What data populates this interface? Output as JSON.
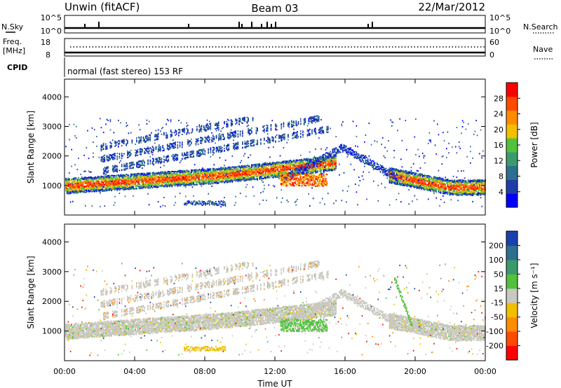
{
  "header": {
    "station": "Unwin (fitACF)",
    "beam": "Beam 03",
    "date": "22/Mar/2012"
  },
  "noise_panel": {
    "left_label": "N.Sky",
    "left_ticks": [
      "10^5",
      "10^0"
    ],
    "right_label": "N.Search",
    "right_ticks": [
      "10^5",
      "10^0"
    ]
  },
  "freq_panel": {
    "left_label_1": "Freq.",
    "left_label_2": "[MHz]",
    "left_ticks": [
      "18",
      "8"
    ],
    "right_label": "Nave",
    "right_ticks": [
      "60",
      "0"
    ]
  },
  "cpid": {
    "label": "CPID",
    "value": "normal (fast stereo) 153 RF"
  },
  "colors": {
    "scale": [
      "#0000ff",
      "#1a40b0",
      "#2e6e8e",
      "#3a9a6e",
      "#52c23c",
      "#c8c8c0",
      "#f0c000",
      "#ff8c00",
      "#ff4a00",
      "#ff0000"
    ]
  },
  "chart_data": [
    {
      "type": "heatmap",
      "name": "power",
      "ylabel": "Slant Range [km]",
      "xlabel": "",
      "x_ticks": [
        "00:00",
        "04:00",
        "08:00",
        "12:00",
        "16:00",
        "20:00",
        "00:00"
      ],
      "y_ticks": [
        1000,
        2000,
        3000,
        4000
      ],
      "ylim": [
        0,
        4600
      ],
      "colorbar": {
        "label": "Power [dB]",
        "ticks": [
          4,
          8,
          12,
          16,
          20,
          24,
          28
        ],
        "range": [
          0,
          32
        ]
      }
    },
    {
      "type": "heatmap",
      "name": "velocity",
      "ylabel": "Slant Range [km]",
      "xlabel": "Time UT",
      "x_ticks": [
        "00:00",
        "04:00",
        "08:00",
        "12:00",
        "16:00",
        "20:00",
        "00:00"
      ],
      "y_ticks": [
        1000,
        2000,
        3000,
        4000
      ],
      "ylim": [
        0,
        4600
      ],
      "colorbar": {
        "label": "Velocity [m s⁻¹]",
        "ticks": [
          "200",
          "100",
          "50",
          "15",
          "-15",
          "-50",
          "-100",
          "-200"
        ]
      }
    }
  ]
}
